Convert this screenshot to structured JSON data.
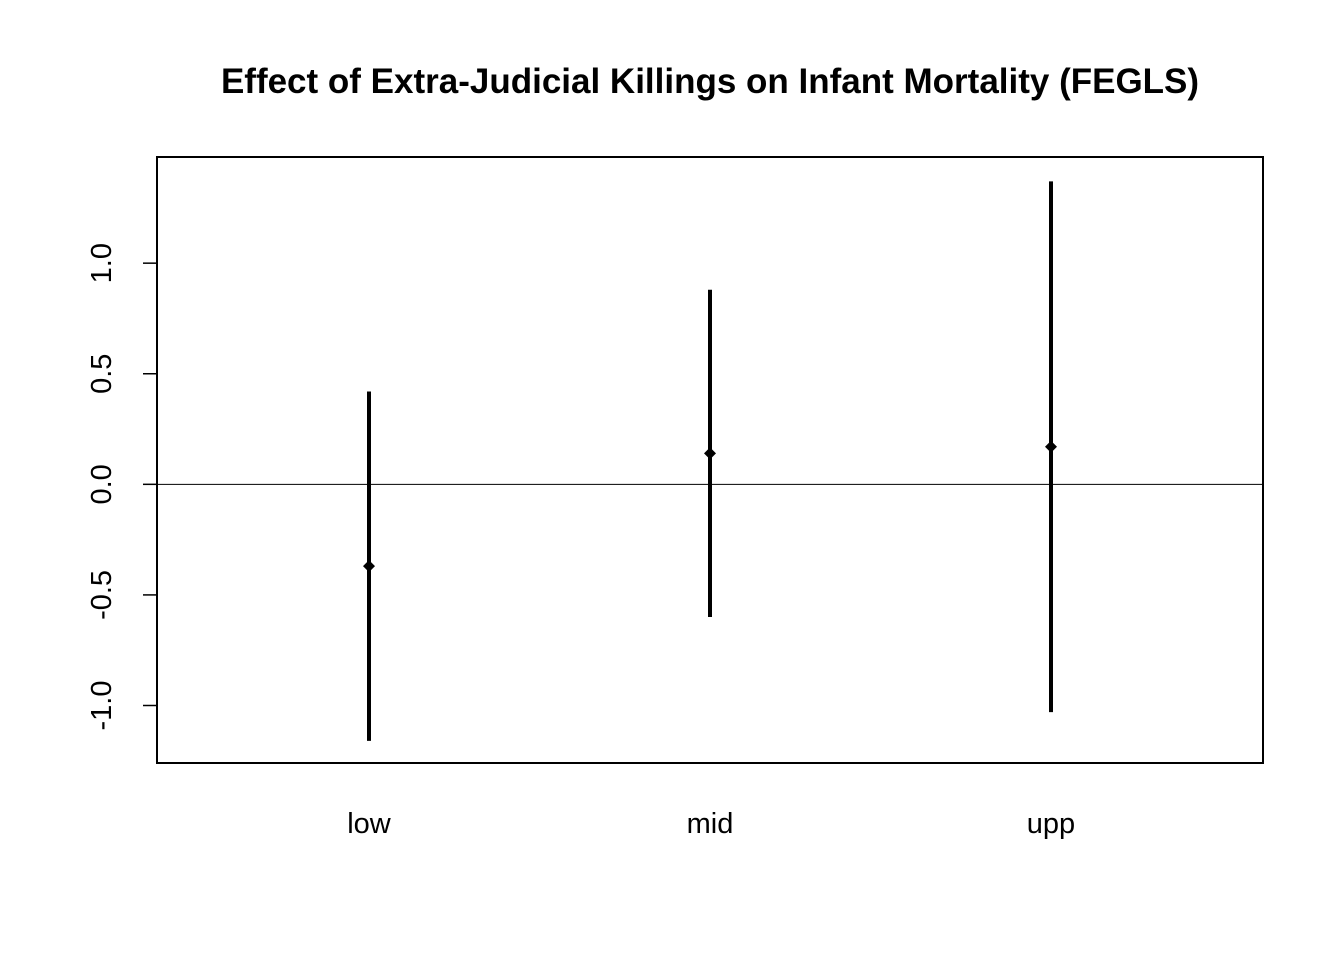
{
  "chart_data": {
    "type": "errorbar",
    "title": "Effect of Extra-Judicial Killings on Infant Mortality (FEGLS)",
    "xlabel": "",
    "ylabel": "",
    "categories": [
      "low",
      "mid",
      "upp"
    ],
    "estimates": [
      -0.37,
      0.14,
      0.17
    ],
    "lower": [
      -1.16,
      -0.6,
      -1.03
    ],
    "upper": [
      0.42,
      0.88,
      1.37
    ],
    "ylim": [
      -1.26,
      1.48
    ],
    "yticks": [
      -1.0,
      -0.5,
      0.0,
      0.5,
      1.0
    ],
    "ytick_labels": [
      "-1.0",
      "-0.5",
      "0.0",
      "0.5",
      "1.0"
    ],
    "reference_line": 0.0,
    "grid": false,
    "legend": "none",
    "colors": {
      "bars": "#000000",
      "points": "#000000",
      "reference_line": "#000000",
      "frame": "#000000"
    }
  }
}
